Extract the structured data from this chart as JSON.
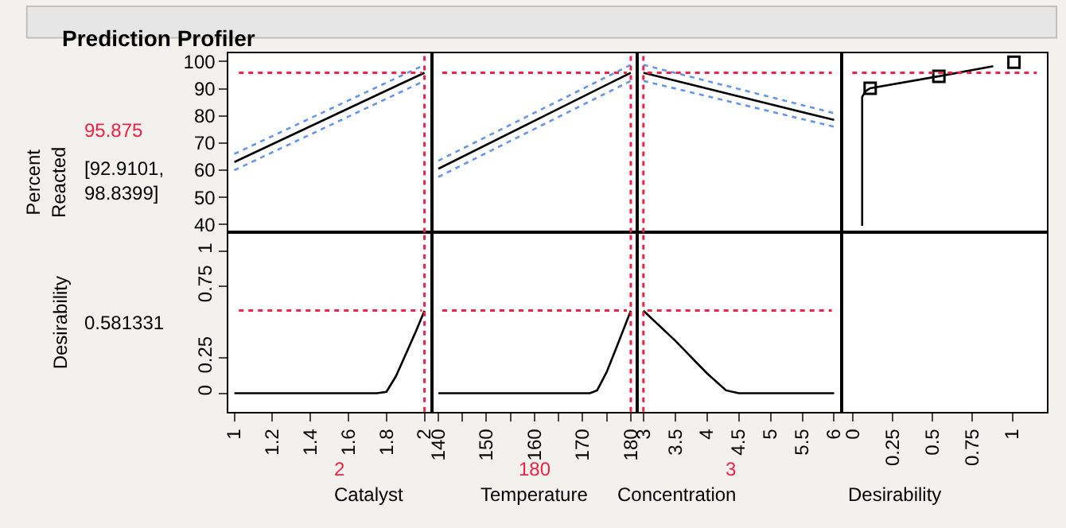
{
  "chart_data": [
    {
      "type": "line",
      "title": "Prediction Profiler",
      "ylabel": "Percent Reacted",
      "annotations": [
        "[92.9101, 98.8399]"
      ],
      "xlim": [
        0.97,
        2.04
      ],
      "ylim": [
        37,
        103
      ],
      "yticks": [
        40,
        50,
        60,
        70,
        80,
        90,
        100
      ],
      "tick_labels": "y",
      "grid": false,
      "series": [
        {
          "x": [
            1,
            2
          ],
          "values": [
            63,
            95.9
          ],
          "color": "#000000",
          "line_style": "solid"
        },
        {
          "x": [
            1,
            2
          ],
          "values": [
            66,
            98.8
          ],
          "color": "#6495ed",
          "line_style": "dotted"
        },
        {
          "x": [
            1,
            2
          ],
          "values": [
            60,
            92.9
          ],
          "color": "#6495ed",
          "line_style": "dotted"
        }
      ],
      "ref_lines": [
        {
          "axis": "y",
          "value": 95.875,
          "label": "95.875",
          "color": "#ee2244",
          "line_style": "dotted"
        },
        {
          "axis": "x",
          "value": 2,
          "color": "#ee2244",
          "line_style": "dotted"
        }
      ]
    },
    {
      "type": "line",
      "xlim": [
        138.7,
        181.3
      ],
      "ylim": [
        37,
        103
      ],
      "tick_labels": false,
      "grid": false,
      "series": [
        {
          "x": [
            140,
            180
          ],
          "values": [
            60.5,
            95.9
          ],
          "color": "#000000",
          "line_style": "solid"
        },
        {
          "x": [
            140,
            180
          ],
          "values": [
            63.5,
            98.8
          ],
          "color": "#6495ed",
          "line_style": "dotted"
        },
        {
          "x": [
            140,
            180
          ],
          "values": [
            57.5,
            92.9
          ],
          "color": "#6495ed",
          "line_style": "dotted"
        }
      ],
      "ref_lines": [
        {
          "axis": "y",
          "value": 95.875,
          "color": "#ee2244",
          "line_style": "dotted"
        },
        {
          "axis": "x",
          "value": 180,
          "color": "#ee2244",
          "line_style": "dotted"
        }
      ]
    },
    {
      "type": "line",
      "xlim": [
        2.9,
        6.125
      ],
      "ylim": [
        37,
        103
      ],
      "tick_labels": false,
      "grid": false,
      "series": [
        {
          "x": [
            3,
            6
          ],
          "values": [
            95.9,
            78.5
          ],
          "color": "#000000",
          "line_style": "solid"
        },
        {
          "x": [
            3,
            6
          ],
          "values": [
            98.8,
            81
          ],
          "color": "#6495ed",
          "line_style": "dotted"
        },
        {
          "x": [
            3,
            6
          ],
          "values": [
            92.9,
            76
          ],
          "color": "#6495ed",
          "line_style": "dotted"
        }
      ],
      "ref_lines": [
        {
          "axis": "y",
          "value": 95.875,
          "color": "#ee2244",
          "line_style": "dotted"
        },
        {
          "axis": "x",
          "value": 3,
          "color": "#ee2244",
          "line_style": "dotted"
        }
      ]
    },
    {
      "type": "line",
      "xlim": [
        -0.066,
        1.217
      ],
      "ylim": [
        37,
        103
      ],
      "tick_labels": false,
      "grid": false,
      "series": [
        {
          "x": [
            0.06,
            0.06,
            0.08,
            0.11,
            0.54,
            0.88
          ],
          "values": [
            39.5,
            87,
            89,
            90.2,
            94.6,
            98.3
          ],
          "color": "#000000",
          "line_style": "solid"
        },
        {
          "type": "scatter",
          "x": [
            0.11,
            0.54,
            1.01
          ],
          "values": [
            90.2,
            94.6,
            99.8
          ],
          "color": "#000000",
          "marker": "square"
        }
      ],
      "ref_lines": [
        {
          "axis": "y",
          "value": 95.875,
          "color": "#ee2244",
          "line_style": "dotted"
        }
      ]
    },
    {
      "type": "line",
      "xlabel": "Catalyst",
      "ylabel": "Desirability",
      "annotations": [
        "0.581331"
      ],
      "xlim": [
        0.97,
        2.04
      ],
      "xticks": [
        1,
        1.2,
        1.4,
        1.6,
        1.8,
        2
      ],
      "ylim": [
        -0.13,
        1.13
      ],
      "yticks": [
        0,
        0.25,
        0.75,
        1
      ],
      "grid": false,
      "series": [
        {
          "x": [
            1,
            1.75,
            1.8,
            1.85,
            1.9,
            1.95,
            2
          ],
          "values": [
            0,
            0,
            0.01,
            0.12,
            0.27,
            0.42,
            0.58
          ],
          "color": "#000000",
          "line_style": "solid"
        }
      ],
      "ref_lines": [
        {
          "axis": "y",
          "value": 0.581331,
          "color": "#ee2244",
          "line_style": "dotted"
        },
        {
          "axis": "x",
          "value": 2,
          "label": "2",
          "color": "#ee2244",
          "line_style": "dotted"
        }
      ]
    },
    {
      "type": "line",
      "xlabel": "Temperature",
      "xlim": [
        138.7,
        181.3
      ],
      "xticks": [
        140,
        {
          "value": 145,
          "label": null
        },
        150,
        {
          "value": 155,
          "label": null
        },
        160,
        {
          "value": 165,
          "label": null
        },
        170,
        {
          "value": 175,
          "label": null
        },
        180
      ],
      "ylim": [
        -0.13,
        1.13
      ],
      "tick_labels": "x",
      "grid": false,
      "series": [
        {
          "x": [
            140,
            171.5,
            173,
            175,
            177,
            180
          ],
          "values": [
            0,
            0,
            0.02,
            0.15,
            0.32,
            0.58
          ],
          "color": "#000000",
          "line_style": "solid"
        }
      ],
      "ref_lines": [
        {
          "axis": "y",
          "value": 0.581331,
          "color": "#ee2244",
          "line_style": "dotted"
        },
        {
          "axis": "x",
          "value": 180,
          "label": "180",
          "color": "#ee2244",
          "line_style": "dotted"
        }
      ]
    },
    {
      "type": "line",
      "xlabel": "Concentration",
      "xlim": [
        2.9,
        6.125
      ],
      "xticks": [
        3,
        3.5,
        4,
        4.5,
        5,
        5.5,
        6
      ],
      "ylim": [
        -0.13,
        1.13
      ],
      "tick_labels": "x",
      "grid": false,
      "series": [
        {
          "x": [
            3,
            3.5,
            4,
            4.3,
            4.5,
            6
          ],
          "values": [
            0.58,
            0.37,
            0.14,
            0.02,
            0,
            0
          ],
          "color": "#000000",
          "line_style": "solid"
        }
      ],
      "ref_lines": [
        {
          "axis": "y",
          "value": 0.581331,
          "color": "#ee2244",
          "line_style": "dotted"
        },
        {
          "axis": "x",
          "value": 3,
          "label": "3",
          "color": "#ee2244",
          "line_style": "dotted"
        }
      ]
    },
    {
      "type": "line",
      "xlabel": "Desirability",
      "xlim": [
        -0.066,
        1.217
      ],
      "xticks": [
        0,
        0.25,
        0.5,
        0.75,
        1
      ],
      "ylim": [
        -0.13,
        1.13
      ],
      "tick_labels": "x",
      "grid": false
    }
  ]
}
